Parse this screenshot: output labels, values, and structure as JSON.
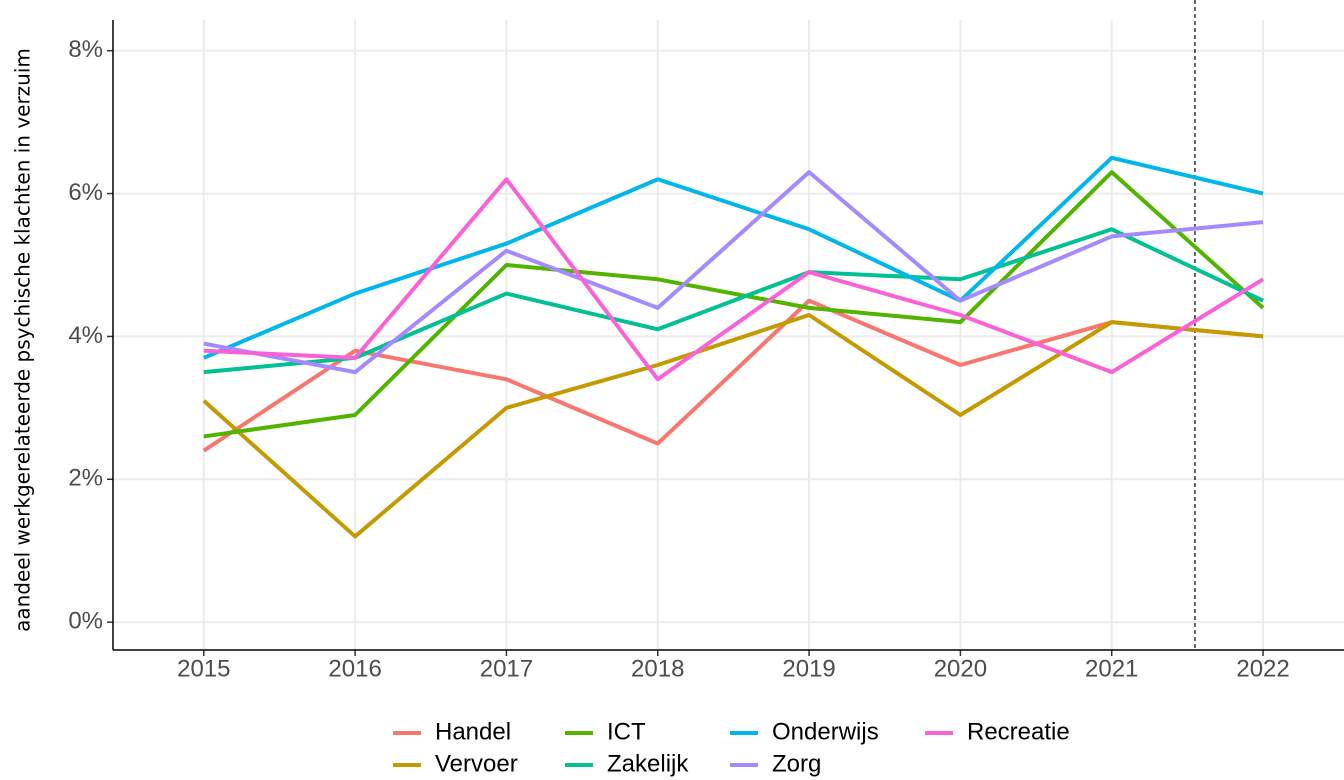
{
  "chart_data": {
    "type": "line",
    "y_label": "aandeel werkgerelateerde psychische klachten in verzuim",
    "x": [
      2015,
      2016,
      2017,
      2018,
      2019,
      2020,
      2021,
      2022
    ],
    "xlim": [
      2014.4,
      2022.535
    ],
    "xticks": [
      2015,
      2016,
      2017,
      2018,
      2019,
      2020,
      2021,
      2022
    ],
    "ylim": [
      -0.39,
      8.43
    ],
    "yticks": [
      {
        "value": 0,
        "label": "0%"
      },
      {
        "value": 2,
        "label": "2%"
      },
      {
        "value": 4,
        "label": "4%"
      },
      {
        "value": 6,
        "label": "6%"
      },
      {
        "value": 8,
        "label": "8%"
      }
    ],
    "grid": true,
    "vline": 2021.55,
    "legend": "bottom",
    "series": [
      {
        "name": "Handel",
        "color": "#F8766D",
        "values": [
          2.4,
          3.8,
          3.4,
          2.5,
          4.5,
          3.6,
          4.2,
          4.0
        ]
      },
      {
        "name": "Vervoer",
        "color": "#C49A00",
        "values": [
          3.1,
          1.2,
          3.0,
          3.6,
          4.3,
          2.9,
          4.2,
          4.0
        ]
      },
      {
        "name": "ICT",
        "color": "#53B400",
        "values": [
          2.6,
          2.9,
          5.0,
          4.8,
          4.4,
          4.2,
          6.3,
          4.4
        ]
      },
      {
        "name": "Zakelijk",
        "color": "#00C094",
        "values": [
          3.5,
          3.7,
          4.6,
          4.1,
          4.9,
          4.8,
          5.5,
          4.5
        ]
      },
      {
        "name": "Onderwijs",
        "color": "#00B6EB",
        "values": [
          3.7,
          4.6,
          5.3,
          6.2,
          5.5,
          4.5,
          6.5,
          6.0
        ]
      },
      {
        "name": "Zorg",
        "color": "#A58AFF",
        "values": [
          3.9,
          3.5,
          5.2,
          4.4,
          6.3,
          4.5,
          5.4,
          5.6
        ]
      },
      {
        "name": "Recreatie",
        "color": "#FB61D7",
        "values": [
          3.8,
          3.7,
          6.2,
          3.4,
          4.9,
          4.3,
          3.5,
          4.8
        ]
      }
    ]
  }
}
